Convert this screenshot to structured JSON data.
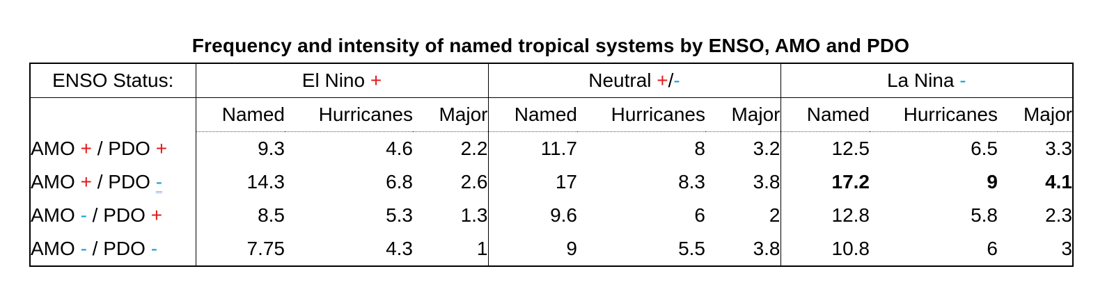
{
  "chart_data": {
    "type": "table",
    "title": "Frequency and intensity of named tropical systems by ENSO, AMO and PDO",
    "corner_label": "ENSO Status:",
    "groups": [
      {
        "name": "El Nino",
        "sign": "+",
        "sign_color": "#e21b1b"
      },
      {
        "name": "Neutral",
        "sign_plus": "+",
        "sign_slash": "/",
        "sign_minus": "-"
      },
      {
        "name": "La Nina",
        "sign": "-",
        "sign_color": "#1a9fd4"
      }
    ],
    "columns": [
      "Named",
      "Hurricanes",
      "Major"
    ],
    "rows": [
      {
        "amo_prefix": "AMO",
        "amo_sign": "+",
        "pdo_prefix": "/ PDO",
        "pdo_sign": "+",
        "values": [
          "9.3",
          "4.6",
          "2.2",
          "11.7",
          "8",
          "3.2",
          "12.5",
          "6.5",
          "3.3"
        ]
      },
      {
        "amo_prefix": "AMO",
        "amo_sign": "+",
        "pdo_prefix": "/ PDO",
        "pdo_sign": "-",
        "values": [
          "14.3",
          "6.8",
          "2.6",
          "17",
          "8.3",
          "3.8",
          "17.2",
          "9",
          "4.1"
        ],
        "bold_columns": [
          6,
          7,
          8
        ]
      },
      {
        "amo_prefix": "AMO",
        "amo_sign": "-",
        "pdo_prefix": "/ PDO",
        "pdo_sign": "+",
        "values": [
          "8.5",
          "5.3",
          "1.3",
          "9.6",
          "6",
          "2",
          "12.8",
          "5.8",
          "2.3"
        ]
      },
      {
        "amo_prefix": "AMO",
        "amo_sign": "-",
        "pdo_prefix": "/ PDO",
        "pdo_sign": "-",
        "values": [
          "7.75",
          "4.3",
          "1",
          "9",
          "5.5",
          "3.8",
          "10.8",
          "6",
          "3"
        ]
      }
    ],
    "colors": {
      "positive": "#e21b1b",
      "negative": "#1a9fd4"
    }
  }
}
